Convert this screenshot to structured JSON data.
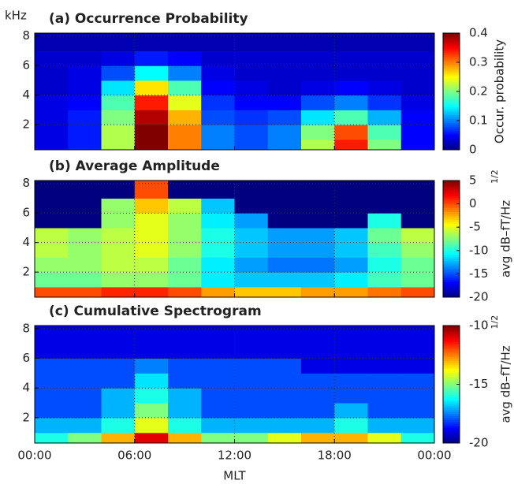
{
  "chart_data": [
    {
      "type": "heatmap",
      "title": "(a) Occurrence Probability",
      "ylabel": "kHz",
      "xlim": [
        0,
        24
      ],
      "xticks": [
        0,
        6,
        12,
        18,
        24
      ],
      "ylim": [
        0.3,
        8.2
      ],
      "yticks": [
        2,
        4,
        6,
        8
      ],
      "grid": true,
      "xbins": [
        0,
        2,
        4,
        6,
        8,
        10,
        12,
        14,
        16,
        18,
        20,
        22,
        24
      ],
      "ybins": [
        0.3,
        1,
        2,
        3,
        4,
        5,
        6,
        7,
        8.2
      ],
      "z": [
        [
          0.04,
          0.06,
          0.22,
          0.4,
          0.3,
          0.1,
          0.08,
          0.1,
          0.22,
          0.34,
          0.2,
          0.05
        ],
        [
          0.04,
          0.06,
          0.22,
          0.4,
          0.3,
          0.1,
          0.08,
          0.1,
          0.2,
          0.32,
          0.18,
          0.05
        ],
        [
          0.04,
          0.06,
          0.2,
          0.38,
          0.28,
          0.08,
          0.07,
          0.08,
          0.14,
          0.18,
          0.12,
          0.05
        ],
        [
          0.04,
          0.05,
          0.18,
          0.34,
          0.24,
          0.07,
          0.05,
          0.05,
          0.08,
          0.1,
          0.07,
          0.04
        ],
        [
          0.03,
          0.04,
          0.14,
          0.26,
          0.18,
          0.05,
          0.04,
          0.03,
          0.04,
          0.05,
          0.04,
          0.03
        ],
        [
          0.03,
          0.04,
          0.08,
          0.15,
          0.1,
          0.04,
          0.03,
          0.03,
          0.03,
          0.03,
          0.03,
          0.03
        ],
        [
          0.03,
          0.03,
          0.04,
          0.06,
          0.05,
          0.03,
          0.03,
          0.03,
          0.03,
          0.03,
          0.03,
          0.03
        ],
        [
          0.02,
          0.02,
          0.02,
          0.02,
          0.02,
          0.02,
          0.02,
          0.02,
          0.02,
          0.02,
          0.02,
          0.02
        ]
      ],
      "clim": [
        0,
        0.4
      ],
      "cticks": [
        0,
        0.1,
        0.2,
        0.3,
        0.4
      ],
      "clabel": "Occur. probability"
    },
    {
      "type": "heatmap",
      "title": "(b) Average Amplitude",
      "xlim": [
        0,
        24
      ],
      "xticks": [
        0,
        6,
        12,
        18,
        24
      ],
      "ylim": [
        0.3,
        8.2
      ],
      "yticks": [
        2,
        4,
        6,
        8
      ],
      "grid": true,
      "xbins": [
        0,
        2,
        4,
        6,
        8,
        10,
        12,
        14,
        16,
        18,
        20,
        22,
        24
      ],
      "ybins": [
        0.3,
        1,
        2,
        3,
        4,
        5,
        6,
        7,
        8.2
      ],
      "z": [
        [
          0,
          0,
          1,
          1,
          0,
          -2,
          -3,
          -3,
          -2,
          -2,
          -1,
          0
        ],
        [
          -8,
          -8,
          -7,
          -7,
          -8,
          -11,
          -12,
          -12,
          -12,
          -11,
          -9,
          -8
        ],
        [
          -7,
          -7,
          -6,
          -6,
          -8,
          -11,
          -13,
          -14,
          -14,
          -13,
          -10,
          -8
        ],
        [
          -6,
          -7,
          -6,
          -5,
          -7,
          -10,
          -12,
          -13,
          -13,
          -12,
          -9,
          -7
        ],
        [
          -6,
          -7,
          -6,
          -5,
          -7,
          -10,
          -12,
          -13,
          -13,
          -12,
          -8,
          -6
        ],
        [
          -20,
          -20,
          -7,
          -5,
          -7,
          -11,
          -13,
          -20,
          -20,
          -20,
          -10,
          -20
        ],
        [
          -20,
          -20,
          -7,
          -3,
          -6,
          -12,
          -20,
          -20,
          -20,
          -20,
          -20,
          -20
        ],
        [
          -20,
          -20,
          -20,
          0,
          -20,
          -20,
          -20,
          -20,
          -20,
          -20,
          -20,
          -20
        ]
      ],
      "clim": [
        -20,
        5
      ],
      "cticks": [
        -20,
        -15,
        -10,
        -5,
        0,
        5
      ],
      "clabel": "avg dB–fT/Hz",
      "clabel_sup": "1/2"
    },
    {
      "type": "heatmap",
      "title": "(c) Cumulative Spectrogram",
      "xlabel": "MLT",
      "xlim": [
        0,
        24
      ],
      "xticks": [
        {
          "value": 0,
          "label": "00:00"
        },
        {
          "value": 6,
          "label": "06:00"
        },
        {
          "value": 12,
          "label": "12:00"
        },
        {
          "value": 18,
          "label": "18:00"
        },
        {
          "value": 24,
          "label": "00:00"
        }
      ],
      "ylim": [
        0.3,
        8.2
      ],
      "yticks": [
        2,
        4,
        6,
        8
      ],
      "grid": true,
      "xbins": [
        0,
        2,
        4,
        6,
        8,
        10,
        12,
        14,
        16,
        18,
        20,
        22,
        24
      ],
      "ybins": [
        0.3,
        1,
        2,
        3,
        4,
        5,
        6,
        7,
        8.2
      ],
      "z": [
        [
          -16,
          -15,
          -13,
          -11,
          -13,
          -15,
          -15,
          -14,
          -13,
          -13,
          -14,
          -16
        ],
        [
          -17,
          -17,
          -16,
          -14,
          -16,
          -17,
          -17,
          -17,
          -17,
          -16,
          -17,
          -17
        ],
        [
          -18,
          -18,
          -17,
          -15,
          -17,
          -18,
          -18,
          -18,
          -18,
          -17,
          -18,
          -18
        ],
        [
          -18,
          -18,
          -17,
          -16,
          -17,
          -18,
          -18,
          -18,
          -18,
          -18,
          -18,
          -18
        ],
        [
          -18,
          -18,
          -18,
          -16.5,
          -18,
          -18,
          -18,
          -18,
          -18,
          -18,
          -18,
          -18
        ],
        [
          -18,
          -18,
          -18,
          -17.5,
          -18,
          -18,
          -18,
          -18,
          -19,
          -19,
          -19,
          -19
        ],
        [
          -19,
          -19,
          -19,
          -19,
          -19,
          -19,
          -19,
          -19,
          -19,
          -19,
          -19,
          -19
        ],
        [
          -19,
          -19,
          -19,
          -19,
          -19,
          -19,
          -19,
          -19,
          -19,
          -19,
          -19,
          -19
        ]
      ],
      "clim": [
        -20,
        -10
      ],
      "cticks": [
        -20,
        -15,
        -10
      ],
      "clabel": "avg dB–fT/Hz",
      "clabel_sup": "1/2"
    }
  ]
}
